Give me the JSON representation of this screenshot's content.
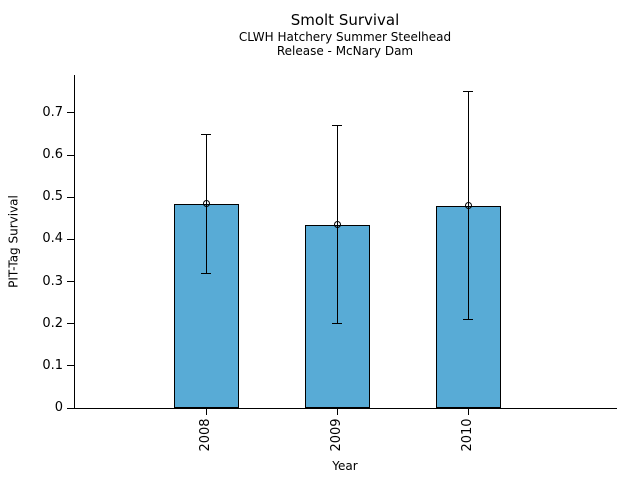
{
  "chart_data": {
    "type": "bar",
    "title": "Smolt Survival",
    "subtitle1": "CLWH Hatchery Summer Steelhead",
    "subtitle2": "Release - McNary Dam",
    "xlabel": "Year",
    "ylabel": "PIT-Tag Survival",
    "categories": [
      "2008",
      "2009",
      "2010"
    ],
    "values": [
      0.485,
      0.435,
      0.48
    ],
    "error_low": [
      0.32,
      0.2,
      0.21
    ],
    "error_high": [
      0.65,
      0.67,
      0.75
    ],
    "marker": "open-circle",
    "ylim": [
      0,
      0.79
    ],
    "yticks": [
      0,
      0.1,
      0.2,
      0.3,
      0.4,
      0.5,
      0.6,
      0.7
    ],
    "ytick_labels": [
      "0",
      "0.1",
      "0.2",
      "0.3",
      "0.4",
      "0.5",
      "0.6",
      "0.7"
    ],
    "grid": false,
    "legend": "none",
    "bar_color": "#58ABD6",
    "bar_edge_color": "#000000",
    "axis_color": "#000000",
    "background_color": "#ffffff"
  }
}
